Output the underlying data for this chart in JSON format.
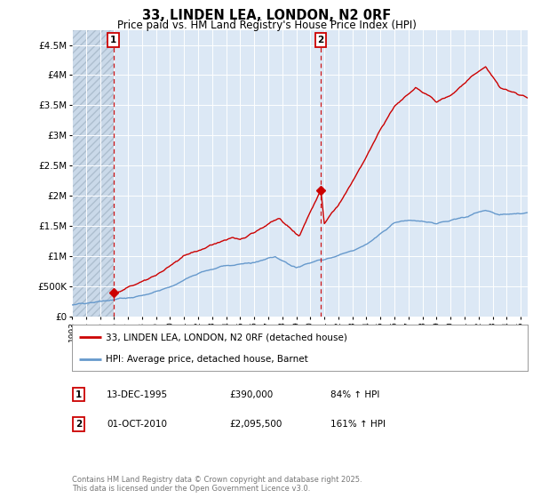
{
  "title": "33, LINDEN LEA, LONDON, N2 0RF",
  "subtitle": "Price paid vs. HM Land Registry's House Price Index (HPI)",
  "legend_label_red": "33, LINDEN LEA, LONDON, N2 0RF (detached house)",
  "legend_label_blue": "HPI: Average price, detached house, Barnet",
  "annotation1_label": "1",
  "annotation1_date": "13-DEC-1995",
  "annotation1_price": "£390,000",
  "annotation1_hpi": "84% ↑ HPI",
  "annotation2_label": "2",
  "annotation2_date": "01-OCT-2010",
  "annotation2_price": "£2,095,500",
  "annotation2_hpi": "161% ↑ HPI",
  "footnote": "Contains HM Land Registry data © Crown copyright and database right 2025.\nThis data is licensed under the Open Government Licence v3.0.",
  "ylim": [
    0,
    4750000
  ],
  "yticks": [
    0,
    500000,
    1000000,
    1500000,
    2000000,
    2500000,
    3000000,
    3500000,
    4000000,
    4500000
  ],
  "ytick_labels": [
    "£0",
    "£500K",
    "£1M",
    "£1.5M",
    "£2M",
    "£2.5M",
    "£3M",
    "£3.5M",
    "£4M",
    "£4.5M"
  ],
  "background_color": "#ffffff",
  "plot_bg_color": "#dce8f5",
  "hatch_bg_color": "#c8d8e8",
  "grid_color": "#ffffff",
  "red_color": "#cc0000",
  "blue_color": "#6699cc",
  "point1_x": 1995.96,
  "point1_y": 390000,
  "point2_x": 2010.75,
  "point2_y": 2095500,
  "vline1_x": 1995.96,
  "vline2_x": 2010.75,
  "xmin": 1993.0,
  "xmax": 2025.5
}
